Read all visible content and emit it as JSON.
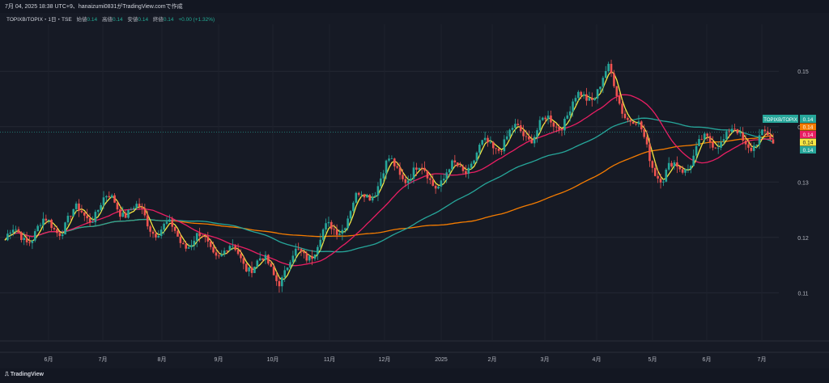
{
  "header": {
    "caption": "7月 04, 2025 18:38 UTC+9、hanaizumi0831がTradingView.comで作成"
  },
  "legend": {
    "symbol": "TOPIXB/TOPIX・1日・TSE",
    "open_label": "始値",
    "open_value": "0.14",
    "high_label": "高値",
    "high_value": "0.14",
    "low_label": "安値",
    "low_value": "0.14",
    "close_label": "終値",
    "close_value": "0.14",
    "change": "+0.00 (+1.32%)"
  },
  "price_tag": {
    "label": "TOPIXB/TOPIX",
    "value": "0.14"
  },
  "ma_tags": [
    {
      "value": "0.14",
      "color": "#f57c00"
    },
    {
      "value": "0.14",
      "color": "#e91e63"
    },
    {
      "value": "0.14",
      "color": "#f5e642"
    },
    {
      "value": "0.14",
      "color": "#26a69a"
    }
  ],
  "footer": {
    "brand": "TradingView"
  },
  "colors": {
    "up": "#26a69a",
    "down": "#ef5350",
    "ma5": "#f5e642",
    "ma25": "#e91e63",
    "ma75": "#26a69a",
    "ma200": "#f57c00"
  },
  "chart_data": {
    "type": "candlestick",
    "y_ticks": [
      "0.15",
      "0.14",
      "0.13",
      "0.12",
      "0.11"
    ],
    "ylim": [
      0.1045,
      0.1585
    ],
    "x_ticks": [
      "6月",
      "7月",
      "8月",
      "9月",
      "10月",
      "11月",
      "12月",
      "2025",
      "2月",
      "3月",
      "4月",
      "5月",
      "6月",
      "7月"
    ],
    "grid": true,
    "close_series": [
      {
        "month": "2024-05",
        "close": 0.1195
      },
      {
        "month": "2024-06",
        "close": 0.1225
      },
      {
        "month": "2024-07",
        "close": 0.1265
      },
      {
        "month": "2024-08",
        "close": 0.1208
      },
      {
        "month": "2024-09",
        "close": 0.1175
      },
      {
        "month": "2024-10",
        "close": 0.1135
      },
      {
        "month": "2024-11",
        "close": 0.1215
      },
      {
        "month": "2024-12",
        "close": 0.1325
      },
      {
        "month": "2025-01",
        "close": 0.1305
      },
      {
        "month": "2025-02",
        "close": 0.1375
      },
      {
        "month": "2025-03",
        "close": 0.1405
      },
      {
        "month": "2025-04",
        "close": 0.149
      },
      {
        "month": "2025-05",
        "close": 0.1305
      },
      {
        "month": "2025-06",
        "close": 0.1385
      },
      {
        "month": "2025-07",
        "close": 0.137
      }
    ],
    "moving_averages": [
      {
        "color": "#f5e642",
        "last": 0.137
      },
      {
        "color": "#e91e63",
        "last": 0.1378
      },
      {
        "color": "#26a69a",
        "last": 0.1368
      },
      {
        "color": "#f57c00",
        "last": 0.1382
      }
    ]
  }
}
